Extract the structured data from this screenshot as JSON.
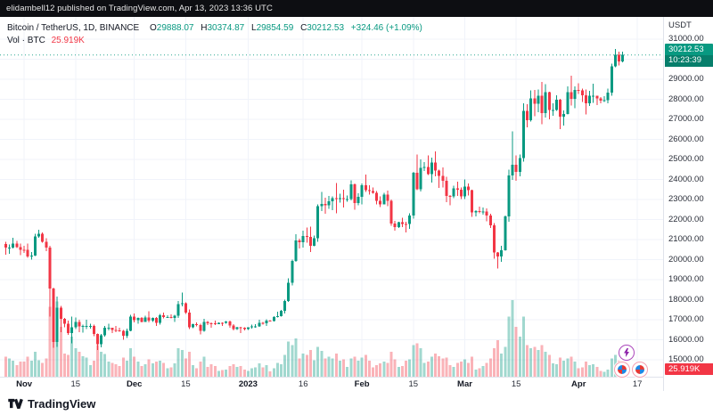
{
  "publish_bar": {
    "text": "elidambell12 published on TradingView.com, Apr 13, 2023 13:36 UTC"
  },
  "legend": {
    "title": "Bitcoin / TetherUS, 1D, BINANCE",
    "items": [
      {
        "k": "O",
        "v": "29888.07"
      },
      {
        "k": "H",
        "v": "30374.87"
      },
      {
        "k": "L",
        "v": "29854.59"
      },
      {
        "k": "C",
        "v": "30212.53"
      }
    ],
    "change": "+324.46 (+1.09%)",
    "vol_label": "Vol · BTC",
    "vol_value": "25.919K"
  },
  "price_axis": {
    "unit": "USDT",
    "ticks": [
      "31000.00",
      "30000.00",
      "29000.00",
      "28000.00",
      "27000.00",
      "26000.00",
      "25000.00",
      "24000.00",
      "23000.00",
      "22000.00",
      "21000.00",
      "20000.00",
      "19000.00",
      "18000.00",
      "17000.00",
      "16000.00",
      "15000.00"
    ],
    "last_price_label": "30212.53",
    "countdown": "10:23:39",
    "volume_badge": "25.919K"
  },
  "time_axis": {
    "ticks": [
      {
        "i": 5,
        "label": "Nov",
        "major": true
      },
      {
        "i": 19,
        "label": "15",
        "major": false
      },
      {
        "i": 35,
        "label": "Dec",
        "major": true
      },
      {
        "i": 49,
        "label": "15",
        "major": false
      },
      {
        "i": 66,
        "label": "2023",
        "major": true
      },
      {
        "i": 81,
        "label": "16",
        "major": false
      },
      {
        "i": 97,
        "label": "Feb",
        "major": true
      },
      {
        "i": 111,
        "label": "15",
        "major": false
      },
      {
        "i": 125,
        "label": "Mar",
        "major": true
      },
      {
        "i": 139,
        "label": "15",
        "major": false
      },
      {
        "i": 156,
        "label": "Apr",
        "major": true
      },
      {
        "i": 172,
        "label": "17",
        "major": false
      }
    ]
  },
  "footer": {
    "brand": "TradingView"
  },
  "colors": {
    "up": "#089981",
    "down": "#f23645",
    "grid": "#f0f3fa",
    "volume_badge_bg": "#f23645",
    "price_badge_bg": "#089981",
    "publish_bar_bg": "#0d0e12",
    "text_dark": "#131722"
  },
  "chart_data": {
    "type": "candlestick",
    "symbol": "Bitcoin / TetherUS",
    "exchange": "BINANCE",
    "interval": "1D",
    "quote_currency": "USDT",
    "ylim": [
      15000,
      31000
    ],
    "grid": true,
    "start_date": "2022-10-27",
    "last_bar": {
      "open": 29888.07,
      "high": 30374.87,
      "low": 29854.59,
      "close": 30212.53,
      "change": 324.46,
      "change_pct": 1.09,
      "volume": "25.919K"
    },
    "columns": [
      "open",
      "high",
      "low",
      "close",
      "volume_kBTC"
    ],
    "candles": [
      [
        20775,
        20880,
        20240,
        20590,
        60
      ],
      [
        20590,
        20755,
        20280,
        20600,
        55
      ],
      [
        20600,
        21080,
        20555,
        20810,
        48
      ],
      [
        20810,
        20930,
        20580,
        20630,
        35
      ],
      [
        20630,
        20800,
        20230,
        20490,
        45
      ],
      [
        20490,
        20700,
        20330,
        20480,
        45
      ],
      [
        20480,
        20800,
        20080,
        20150,
        60
      ],
      [
        20150,
        20380,
        20000,
        20210,
        48
      ],
      [
        20210,
        21300,
        20180,
        21150,
        75
      ],
      [
        21150,
        21480,
        21080,
        21300,
        50
      ],
      [
        21300,
        21360,
        20850,
        20900,
        42
      ],
      [
        20900,
        21070,
        20430,
        20600,
        55
      ],
      [
        20600,
        20700,
        17160,
        18545,
        210
      ],
      [
        18545,
        18590,
        15590,
        15880,
        240
      ],
      [
        15880,
        18150,
        15650,
        17600,
        225
      ],
      [
        17600,
        17700,
        16370,
        17050,
        150
      ],
      [
        17050,
        17100,
        16620,
        16800,
        70
      ],
      [
        16800,
        16960,
        16240,
        16330,
        65
      ],
      [
        16330,
        17160,
        15815,
        16620,
        120
      ],
      [
        16620,
        17120,
        16530,
        16900,
        85
      ],
      [
        16900,
        16990,
        16380,
        16670,
        75
      ],
      [
        16670,
        16750,
        16360,
        16700,
        62
      ],
      [
        16700,
        17000,
        16540,
        16700,
        58
      ],
      [
        16700,
        16790,
        16550,
        16700,
        35
      ],
      [
        16700,
        16750,
        16180,
        16280,
        48
      ],
      [
        16280,
        16310,
        15480,
        15780,
        95
      ],
      [
        15780,
        16290,
        15620,
        16230,
        75
      ],
      [
        16230,
        16700,
        16150,
        16600,
        68
      ],
      [
        16600,
        16790,
        16460,
        16600,
        45
      ],
      [
        16600,
        16610,
        16340,
        16500,
        42
      ],
      [
        16500,
        16690,
        16380,
        16460,
        38
      ],
      [
        16460,
        16590,
        16410,
        16440,
        32
      ],
      [
        16440,
        16480,
        16010,
        16210,
        58
      ],
      [
        16210,
        16550,
        16100,
        16440,
        48
      ],
      [
        16440,
        17250,
        16430,
        17165,
        85
      ],
      [
        17165,
        17320,
        16860,
        16970,
        60
      ],
      [
        16970,
        17110,
        16790,
        17090,
        45
      ],
      [
        17090,
        17140,
        16860,
        16885,
        32
      ],
      [
        16885,
        17200,
        16880,
        17105,
        38
      ],
      [
        17105,
        17420,
        16870,
        16965,
        52
      ],
      [
        16965,
        17110,
        16900,
        17090,
        40
      ],
      [
        17090,
        17140,
        16680,
        16840,
        45
      ],
      [
        16840,
        17300,
        16750,
        17230,
        48
      ],
      [
        17230,
        17360,
        17060,
        17130,
        42
      ],
      [
        17130,
        17230,
        17090,
        17130,
        25
      ],
      [
        17130,
        17270,
        17070,
        17090,
        28
      ],
      [
        17090,
        17240,
        16900,
        17210,
        40
      ],
      [
        17210,
        17930,
        17090,
        17780,
        85
      ],
      [
        17780,
        18350,
        17660,
        17815,
        80
      ],
      [
        17815,
        17860,
        17280,
        17365,
        55
      ],
      [
        17365,
        17520,
        16530,
        16630,
        75
      ],
      [
        16630,
        16795,
        16580,
        16780,
        35
      ],
      [
        16780,
        16870,
        16670,
        16740,
        25
      ],
      [
        16740,
        16810,
        16270,
        16440,
        45
      ],
      [
        16440,
        17040,
        16400,
        16900,
        60
      ],
      [
        16900,
        16925,
        16730,
        16825,
        30
      ],
      [
        16825,
        16870,
        16590,
        16820,
        38
      ],
      [
        16820,
        16950,
        16730,
        16780,
        32
      ],
      [
        16780,
        16870,
        16770,
        16845,
        18
      ],
      [
        16845,
        16860,
        16700,
        16840,
        20
      ],
      [
        16840,
        16940,
        16790,
        16920,
        22
      ],
      [
        16920,
        16965,
        16590,
        16705,
        32
      ],
      [
        16705,
        16780,
        16470,
        16540,
        38
      ],
      [
        16540,
        16650,
        16490,
        16630,
        30
      ],
      [
        16630,
        16645,
        16330,
        16600,
        32
      ],
      [
        16600,
        16630,
        16470,
        16540,
        22
      ],
      [
        16540,
        16630,
        16500,
        16615,
        18
      ],
      [
        16615,
        16760,
        16550,
        16670,
        25
      ],
      [
        16670,
        16770,
        16600,
        16670,
        28
      ],
      [
        16670,
        16990,
        16650,
        16850,
        40
      ],
      [
        16850,
        16880,
        16750,
        16830,
        28
      ],
      [
        16830,
        17025,
        16680,
        16950,
        35
      ],
      [
        16950,
        16980,
        16910,
        16940,
        16
      ],
      [
        16940,
        17180,
        16915,
        17125,
        25
      ],
      [
        17125,
        17390,
        17105,
        17180,
        42
      ],
      [
        17180,
        17490,
        17150,
        17440,
        38
      ],
      [
        17440,
        18000,
        17320,
        17940,
        65
      ],
      [
        17940,
        19060,
        17900,
        18850,
        105
      ],
      [
        18850,
        20000,
        18720,
        19930,
        95
      ],
      [
        19930,
        21260,
        19890,
        20955,
        115
      ],
      [
        20955,
        21050,
        20560,
        20870,
        55
      ],
      [
        20870,
        21440,
        20610,
        21180,
        70
      ],
      [
        21180,
        21590,
        20840,
        21135,
        65
      ],
      [
        21135,
        21650,
        20370,
        20680,
        80
      ],
      [
        20680,
        21190,
        20660,
        21075,
        50
      ],
      [
        21075,
        22750,
        20900,
        22665,
        90
      ],
      [
        22665,
        23370,
        22420,
        22780,
        78
      ],
      [
        22780,
        23080,
        22290,
        22705,
        55
      ],
      [
        22705,
        23180,
        22530,
        22915,
        60
      ],
      [
        22915,
        23165,
        22475,
        23060,
        55
      ],
      [
        23060,
        23820,
        22320,
        23015,
        70
      ],
      [
        23015,
        23280,
        22850,
        23075,
        48
      ],
      [
        23075,
        23490,
        22610,
        23020,
        52
      ],
      [
        23020,
        23190,
        22880,
        23030,
        30
      ],
      [
        23030,
        23960,
        22965,
        23745,
        55
      ],
      [
        23745,
        23800,
        22500,
        22830,
        60
      ],
      [
        22830,
        23320,
        22715,
        23125,
        48
      ],
      [
        23125,
        23810,
        22760,
        23720,
        58
      ],
      [
        23720,
        24250,
        23370,
        23470,
        65
      ],
      [
        23470,
        23710,
        23235,
        23430,
        48
      ],
      [
        23430,
        23590,
        23290,
        23325,
        28
      ],
      [
        23325,
        23430,
        22760,
        22930,
        35
      ],
      [
        22930,
        23160,
        22630,
        22760,
        40
      ],
      [
        22760,
        23340,
        22745,
        23240,
        45
      ],
      [
        23240,
        23440,
        22670,
        22940,
        42
      ],
      [
        22940,
        23010,
        21700,
        21790,
        75
      ],
      [
        21790,
        21940,
        21450,
        21625,
        52
      ],
      [
        21625,
        21890,
        21580,
        21860,
        30
      ],
      [
        21860,
        22090,
        21630,
        21780,
        32
      ],
      [
        21780,
        21900,
        21350,
        21770,
        48
      ],
      [
        21770,
        22320,
        21530,
        22200,
        52
      ],
      [
        22200,
        24380,
        22050,
        24325,
        95
      ],
      [
        24325,
        25250,
        23460,
        23520,
        100
      ],
      [
        23520,
        24990,
        23390,
        24570,
        85
      ],
      [
        24570,
        24870,
        24430,
        24630,
        42
      ],
      [
        24630,
        25190,
        24230,
        24270,
        45
      ],
      [
        24270,
        25100,
        23850,
        24840,
        60
      ],
      [
        24840,
        25400,
        24160,
        24450,
        70
      ],
      [
        24450,
        24480,
        23580,
        24180,
        62
      ],
      [
        24180,
        24600,
        23610,
        23940,
        55
      ],
      [
        23940,
        24130,
        22860,
        23185,
        58
      ],
      [
        23185,
        23220,
        22720,
        23160,
        35
      ],
      [
        23160,
        23690,
        23060,
        23555,
        30
      ],
      [
        23555,
        23900,
        23170,
        23490,
        42
      ],
      [
        23490,
        23600,
        23020,
        23145,
        45
      ],
      [
        23145,
        23990,
        23020,
        23640,
        52
      ],
      [
        23640,
        23790,
        23210,
        23465,
        42
      ],
      [
        23465,
        23480,
        22140,
        22355,
        60
      ],
      [
        22355,
        22470,
        22150,
        22430,
        22
      ],
      [
        22430,
        22650,
        22310,
        22410,
        25
      ],
      [
        22410,
        22600,
        22250,
        22410,
        32
      ],
      [
        22410,
        22550,
        21920,
        22200,
        42
      ],
      [
        22200,
        22290,
        21580,
        21710,
        55
      ],
      [
        21710,
        21830,
        20050,
        20360,
        85
      ],
      [
        20360,
        20370,
        19550,
        20150,
        110
      ],
      [
        20150,
        20690,
        19890,
        20470,
        70
      ],
      [
        20470,
        22200,
        20440,
        22160,
        90
      ],
      [
        22160,
        24500,
        21880,
        24200,
        180
      ],
      [
        24200,
        26390,
        23980,
        24740,
        230
      ],
      [
        24740,
        25200,
        23930,
        24375,
        150
      ],
      [
        24375,
        25240,
        24150,
        25060,
        120
      ],
      [
        25060,
        27800,
        24900,
        27425,
        180
      ],
      [
        27425,
        27760,
        26600,
        26965,
        95
      ],
      [
        26965,
        28440,
        26900,
        28040,
        85
      ],
      [
        28040,
        28470,
        27150,
        27770,
        90
      ],
      [
        27770,
        28480,
        27350,
        28170,
        80
      ],
      [
        28170,
        28870,
        26750,
        27305,
        95
      ],
      [
        27305,
        28750,
        27100,
        28350,
        75
      ],
      [
        28350,
        28370,
        27000,
        27465,
        65
      ],
      [
        27465,
        27790,
        27170,
        27475,
        40
      ],
      [
        27475,
        28190,
        27430,
        27985,
        38
      ],
      [
        27985,
        28020,
        26510,
        27130,
        58
      ],
      [
        27130,
        27450,
        26680,
        27270,
        48
      ],
      [
        27270,
        28650,
        27240,
        28355,
        55
      ],
      [
        28355,
        29180,
        27700,
        28030,
        60
      ],
      [
        28030,
        28650,
        27550,
        28470,
        45
      ],
      [
        28470,
        28810,
        28270,
        28455,
        25
      ],
      [
        28455,
        28540,
        27870,
        28200,
        28
      ],
      [
        28200,
        28480,
        27250,
        27800,
        45
      ],
      [
        27800,
        28430,
        27670,
        28170,
        35
      ],
      [
        28170,
        28770,
        27830,
        28175,
        38
      ],
      [
        28175,
        28180,
        27720,
        28040,
        30
      ],
      [
        28040,
        28110,
        27790,
        27925,
        18
      ],
      [
        27925,
        28160,
        27860,
        27945,
        15
      ],
      [
        27945,
        28540,
        27810,
        28330,
        22
      ],
      [
        28330,
        29770,
        28180,
        29650,
        55
      ],
      [
        29650,
        30510,
        29590,
        30230,
        65
      ],
      [
        30230,
        30380,
        29690,
        29890,
        48
      ],
      [
        29888.07,
        30374.87,
        29854.59,
        30212.53,
        25.919
      ]
    ]
  }
}
